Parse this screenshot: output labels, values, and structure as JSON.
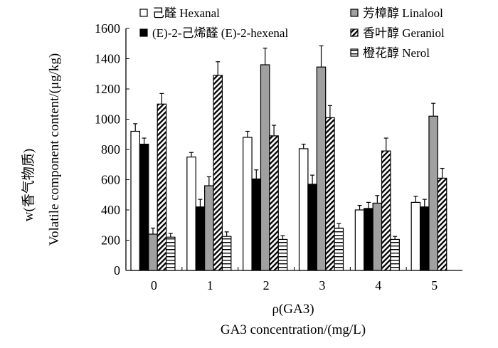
{
  "chart_data": {
    "type": "bar",
    "categories": [
      "0",
      "1",
      "2",
      "3",
      "4",
      "5"
    ],
    "ylim": [
      0,
      1600
    ],
    "yticks": [
      0,
      200,
      400,
      600,
      800,
      1000,
      1200,
      1400,
      1600
    ],
    "ylabel_cn": "w(香气物质)",
    "ylabel": "Volatile component content/(μg/kg)",
    "xlabel_cn": "ρ(GA3)",
    "xlabel": "GA3 concentration/(mg/L)",
    "legend_placement": "top",
    "series": [
      {
        "name": "己醛 Hexanal",
        "fill": "white",
        "values": [
          920,
          750,
          880,
          805,
          400,
          450
        ],
        "errors": [
          50,
          30,
          40,
          30,
          30,
          40
        ]
      },
      {
        "name": "(E)-2-己烯醛 (E)-2-hexenal",
        "fill": "black",
        "values": [
          835,
          420,
          605,
          570,
          410,
          420
        ],
        "errors": [
          40,
          50,
          60,
          60,
          40,
          50
        ]
      },
      {
        "name": "芳樟醇 Linalool",
        "fill": "gray",
        "values": [
          240,
          560,
          1360,
          1345,
          445,
          1020
        ],
        "errors": [
          40,
          60,
          110,
          140,
          50,
          85
        ]
      },
      {
        "name": "香叶醇 Geraniol",
        "fill": "hatch",
        "values": [
          1100,
          1290,
          890,
          1010,
          790,
          610
        ],
        "errors": [
          70,
          90,
          70,
          80,
          85,
          65
        ]
      },
      {
        "name": "橙花醇 Nerol",
        "fill": "hlines",
        "values": [
          220,
          225,
          205,
          280,
          205,
          null
        ],
        "errors": [
          25,
          30,
          25,
          30,
          20,
          null
        ]
      }
    ],
    "colors": {
      "white": "#ffffff",
      "black": "#000000",
      "gray": "#a0a0a0"
    }
  }
}
